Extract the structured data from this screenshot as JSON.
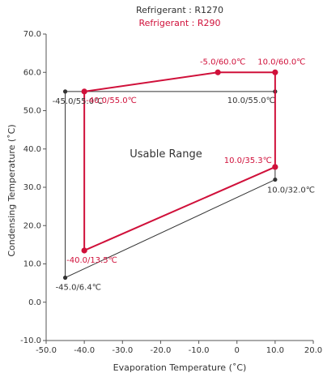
{
  "chart_data": {
    "type": "line",
    "title": "",
    "xlabel": "Evaporation Temperature (˚C)",
    "ylabel": "Condensing Temperature (˚C)",
    "xlim": [
      -50,
      20
    ],
    "ylim": [
      -10,
      70
    ],
    "x_ticks": [
      "-50.0",
      "-40.0",
      "-30.0",
      "-20.0",
      "-10.0",
      "0",
      "10.0",
      "20.0"
    ],
    "y_ticks": [
      "-10.0",
      "0.0",
      "10.0",
      "20.0",
      "30.0",
      "40.0",
      "50.0",
      "60.0",
      "70.0"
    ],
    "x_tick_values": [
      -50,
      -40,
      -30,
      -20,
      -10,
      0,
      10,
      20
    ],
    "y_tick_values": [
      -10,
      0,
      10,
      20,
      30,
      40,
      50,
      60,
      70
    ],
    "legend_placement": "top-center",
    "center_text": "Usable Range",
    "series": [
      {
        "name": "Refrigerant : R1270",
        "color": "#333333",
        "points": [
          {
            "x": -45.0,
            "y": 55.0,
            "label": "-45.0/55.0℃"
          },
          {
            "x": 10.0,
            "y": 55.0,
            "label": "10.0/55.0℃"
          },
          {
            "x": 10.0,
            "y": 32.0,
            "label": "10.0/32.0℃"
          },
          {
            "x": -45.0,
            "y": 6.4,
            "label": "-45.0/6.4℃"
          }
        ]
      },
      {
        "name": "Refrigerant : R290",
        "color": "#d0103a",
        "points": [
          {
            "x": -40.0,
            "y": 55.0,
            "label": "-40.0/55.0℃"
          },
          {
            "x": -5.0,
            "y": 60.0,
            "label": "-5.0/60.0℃"
          },
          {
            "x": 10.0,
            "y": 60.0,
            "label": "10.0/60.0℃"
          },
          {
            "x": 10.0,
            "y": 35.3,
            "label": "10.0/35.3℃"
          },
          {
            "x": -40.0,
            "y": 13.5,
            "label": "-40.0/13.5℃"
          }
        ]
      }
    ]
  }
}
